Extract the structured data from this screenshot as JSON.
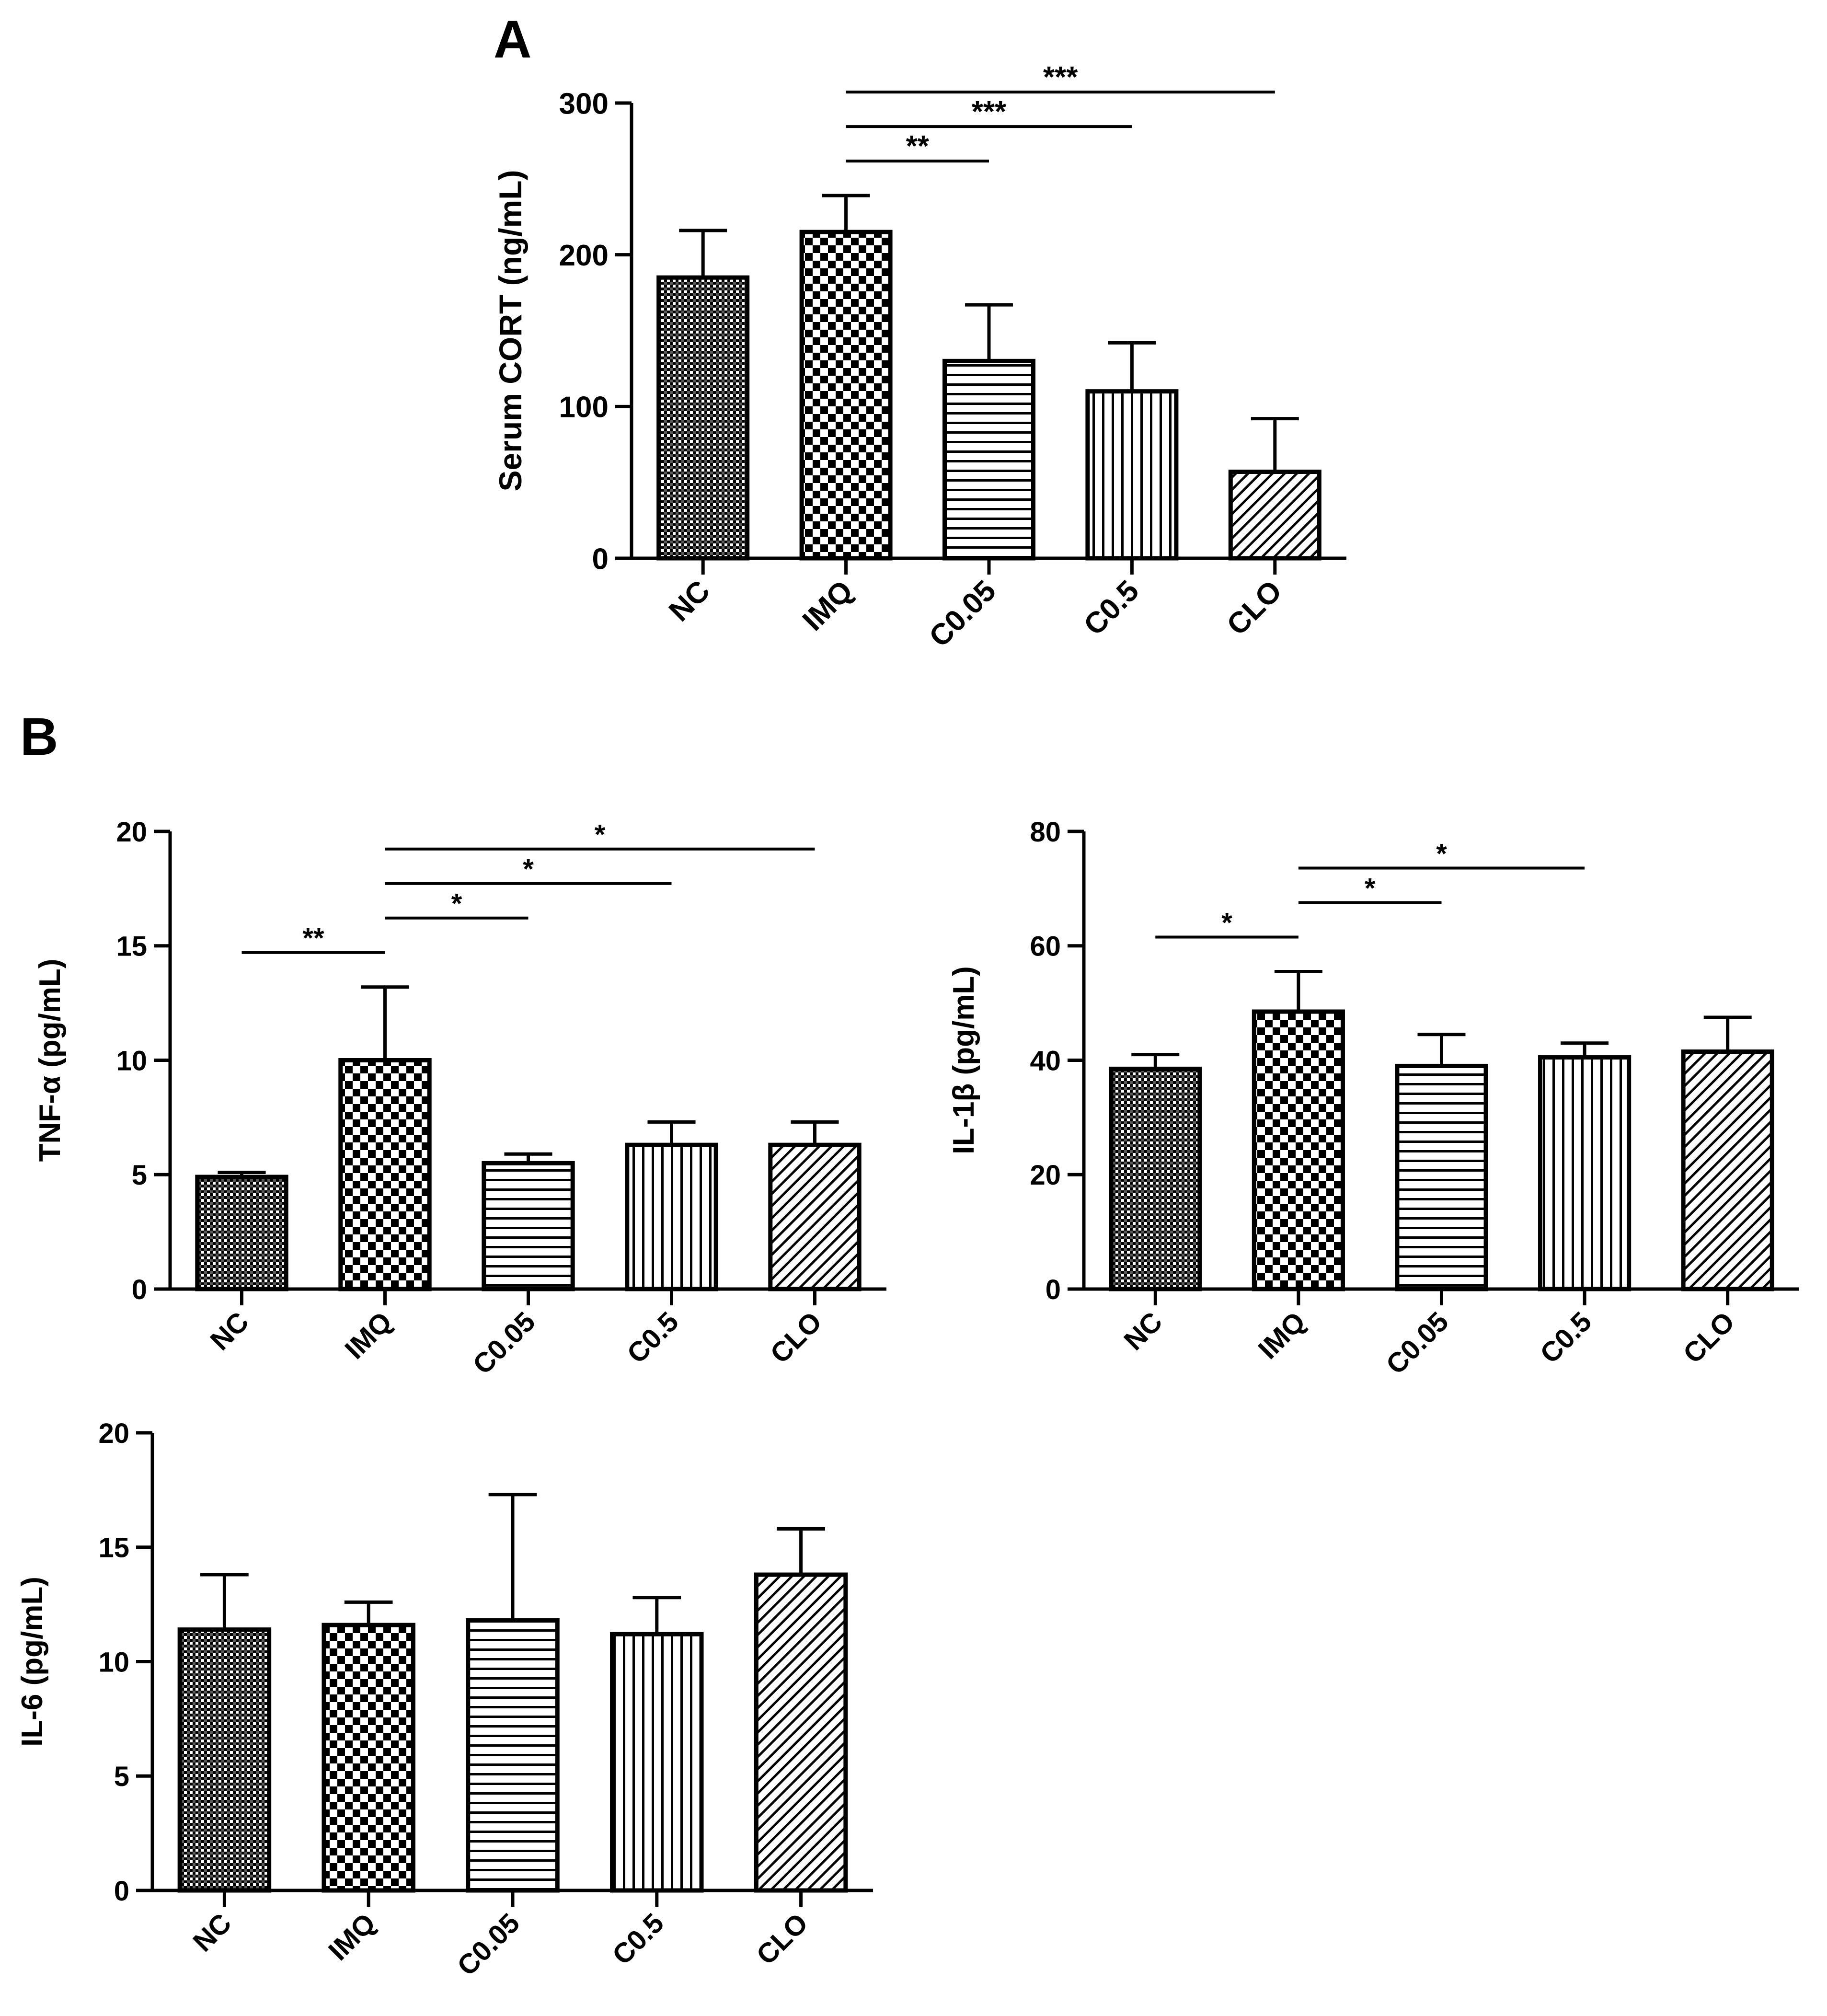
{
  "figure": {
    "panel_labels": [
      "A",
      "B"
    ]
  },
  "chart_data": [
    {
      "id": "cort",
      "panel": "A",
      "type": "bar",
      "title": "",
      "xlabel": "",
      "ylabel": "Serum CORT (ng/mL)",
      "ylim": [
        0,
        300
      ],
      "yticks": [
        "0",
        "100",
        "200",
        "300"
      ],
      "categories": [
        "NC",
        "IMQ",
        "C0.05",
        "C0.5",
        "CLO"
      ],
      "patterns": [
        "grid",
        "checker",
        "hlines",
        "vlines",
        "diag"
      ],
      "values": [
        185,
        215,
        130,
        110,
        57
      ],
      "errors": [
        31,
        24,
        37,
        32,
        35
      ],
      "significance": [
        {
          "from": 1,
          "to": 2,
          "label": "**"
        },
        {
          "from": 1,
          "to": 3,
          "label": "***"
        },
        {
          "from": 1,
          "to": 4,
          "label": "***"
        }
      ]
    },
    {
      "id": "tnf",
      "panel": "B",
      "type": "bar",
      "title": "",
      "xlabel": "",
      "ylabel": "TNF-α (pg/mL)",
      "ylim": [
        0,
        20
      ],
      "yticks": [
        "0",
        "5",
        "10",
        "15",
        "20"
      ],
      "categories": [
        "NC",
        "IMQ",
        "C0.05",
        "C0.5",
        "CLO"
      ],
      "patterns": [
        "grid",
        "checker",
        "hlines",
        "vlines",
        "diag"
      ],
      "values": [
        4.9,
        10.0,
        5.5,
        6.3,
        6.3
      ],
      "errors": [
        0.2,
        3.2,
        0.4,
        1.0,
        1.0
      ],
      "significance": [
        {
          "from": 0,
          "to": 1,
          "label": "**"
        },
        {
          "from": 1,
          "to": 2,
          "label": "*"
        },
        {
          "from": 1,
          "to": 3,
          "label": "*"
        },
        {
          "from": 1,
          "to": 4,
          "label": "*"
        }
      ]
    },
    {
      "id": "il1b",
      "panel": "B",
      "type": "bar",
      "title": "",
      "xlabel": "",
      "ylabel": "IL-1β (pg/mL)",
      "ylim": [
        0,
        80
      ],
      "yticks": [
        "0",
        "20",
        "40",
        "60",
        "80"
      ],
      "categories": [
        "NC",
        "IMQ",
        "C0.05",
        "C0.5",
        "CLO"
      ],
      "patterns": [
        "grid",
        "checker",
        "hlines",
        "vlines",
        "diag"
      ],
      "values": [
        38.5,
        48.5,
        39.0,
        40.5,
        41.5
      ],
      "errors": [
        2.5,
        7.0,
        5.5,
        2.5,
        6.0
      ],
      "significance": [
        {
          "from": 0,
          "to": 1,
          "label": "*"
        },
        {
          "from": 1,
          "to": 2,
          "label": "*"
        },
        {
          "from": 1,
          "to": 3,
          "label": "*"
        }
      ]
    },
    {
      "id": "il6",
      "panel": "B",
      "type": "bar",
      "title": "",
      "xlabel": "",
      "ylabel": "IL-6 (pg/mL)",
      "ylim": [
        0,
        20
      ],
      "yticks": [
        "0",
        "5",
        "10",
        "15",
        "20"
      ],
      "categories": [
        "NC",
        "IMQ",
        "C0.05",
        "C0.5",
        "CLO"
      ],
      "patterns": [
        "grid",
        "checker",
        "hlines",
        "vlines",
        "diag"
      ],
      "values": [
        11.4,
        11.6,
        11.8,
        11.2,
        13.8
      ],
      "errors": [
        2.4,
        1.0,
        5.5,
        1.6,
        2.0
      ],
      "significance": []
    }
  ]
}
